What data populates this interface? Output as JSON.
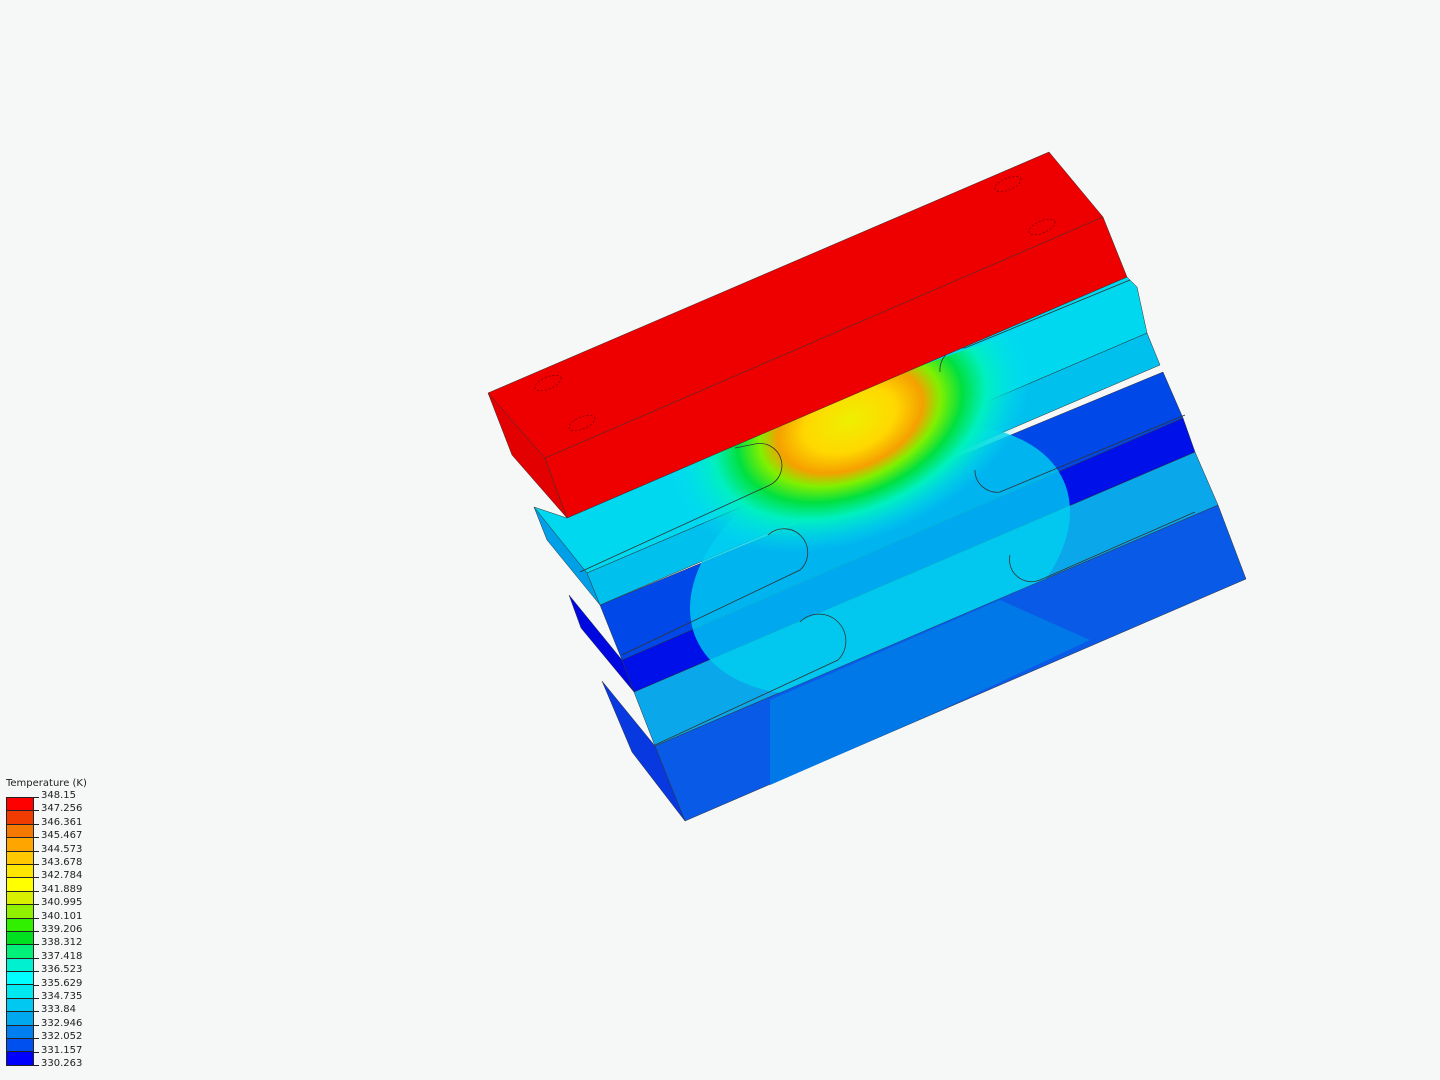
{
  "legend": {
    "title": "Temperature (K)",
    "labels": [
      "348.15",
      "347.256",
      "346.361",
      "345.467",
      "344.573",
      "343.678",
      "342.784",
      "341.889",
      "340.995",
      "340.101",
      "339.206",
      "338.312",
      "337.418",
      "336.523",
      "335.629",
      "334.735",
      "333.84",
      "332.946",
      "332.052",
      "331.157",
      "330.263"
    ],
    "colors": [
      "#ff0000",
      "#f03c00",
      "#f57800",
      "#ffa500",
      "#ffc800",
      "#ffe600",
      "#ffff00",
      "#d8f000",
      "#90f000",
      "#30f000",
      "#00e020",
      "#00f07a",
      "#00f0d0",
      "#00ffff",
      "#00e8f0",
      "#00c8f0",
      "#00a8f0",
      "#0080f0",
      "#0050f0",
      "#0000ff"
    ]
  },
  "colors": {
    "background": "#f6f7f7",
    "hot": "#ee0000",
    "cyan": "#00d0f0",
    "blue": "#0040e8",
    "deep_blue": "#0000ee"
  }
}
